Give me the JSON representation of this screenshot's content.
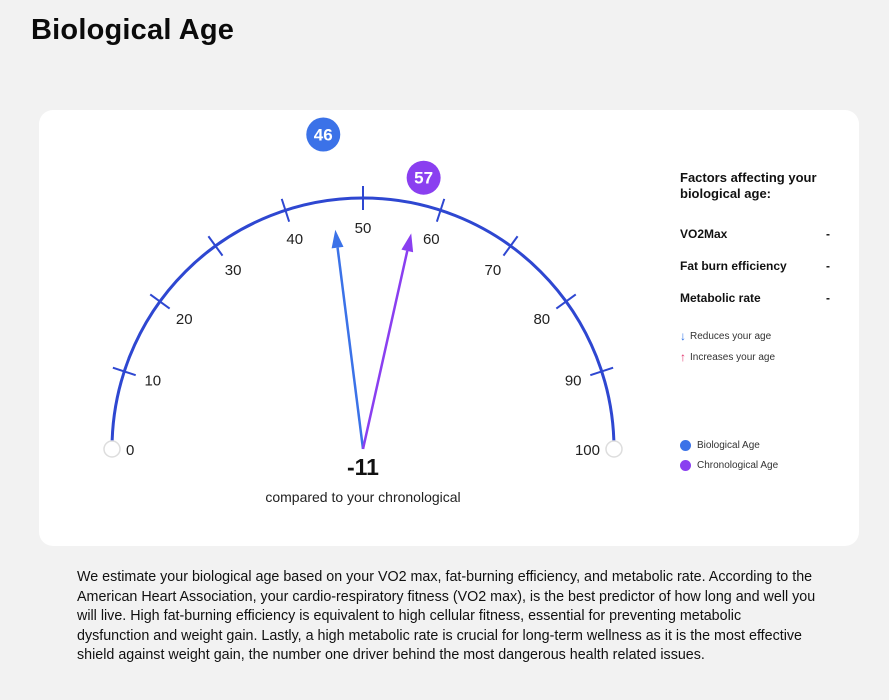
{
  "header": {
    "title": "Biological Age"
  },
  "gauge": {
    "min": 0,
    "max": 100,
    "ticks": [
      "0",
      "10",
      "20",
      "30",
      "40",
      "50",
      "60",
      "70",
      "80",
      "90",
      "100"
    ],
    "biological_age": 46,
    "chronological_age": 57,
    "biological_age_label": "46",
    "chronological_age_label": "57",
    "difference": "-11",
    "difference_caption": "compared to your chronological",
    "colors": {
      "arc": "#2e47d1",
      "biological": "#3b72e8",
      "chronological": "#8a3ff0"
    }
  },
  "factors": {
    "title": "Factors affecting your biological age:",
    "items": [
      {
        "name": "VO2Max",
        "value": "-"
      },
      {
        "name": "Fat burn efficiency",
        "value": "-"
      },
      {
        "name": "Metabolic rate",
        "value": "-"
      }
    ],
    "reduces_label": "Reduces your age",
    "increases_label": "Increases your age"
  },
  "legend": {
    "biological": "Biological Age",
    "chronological": "Chronological Age"
  },
  "description": "We estimate your biological age based on your VO2 max, fat-burning efficiency, and metabolic rate. According to the American Heart Association, your cardio-respiratory fitness (VO2 max), is the best predictor of how long and well you will live. High fat-burning efficiency is equivalent to high cellular fitness, essential for preventing metabolic dysfunction and weight gain. Lastly, a high metabolic rate is crucial for long-term wellness as it is the most effective shield against weight gain, the number one driver behind the most dangerous health related issues."
}
